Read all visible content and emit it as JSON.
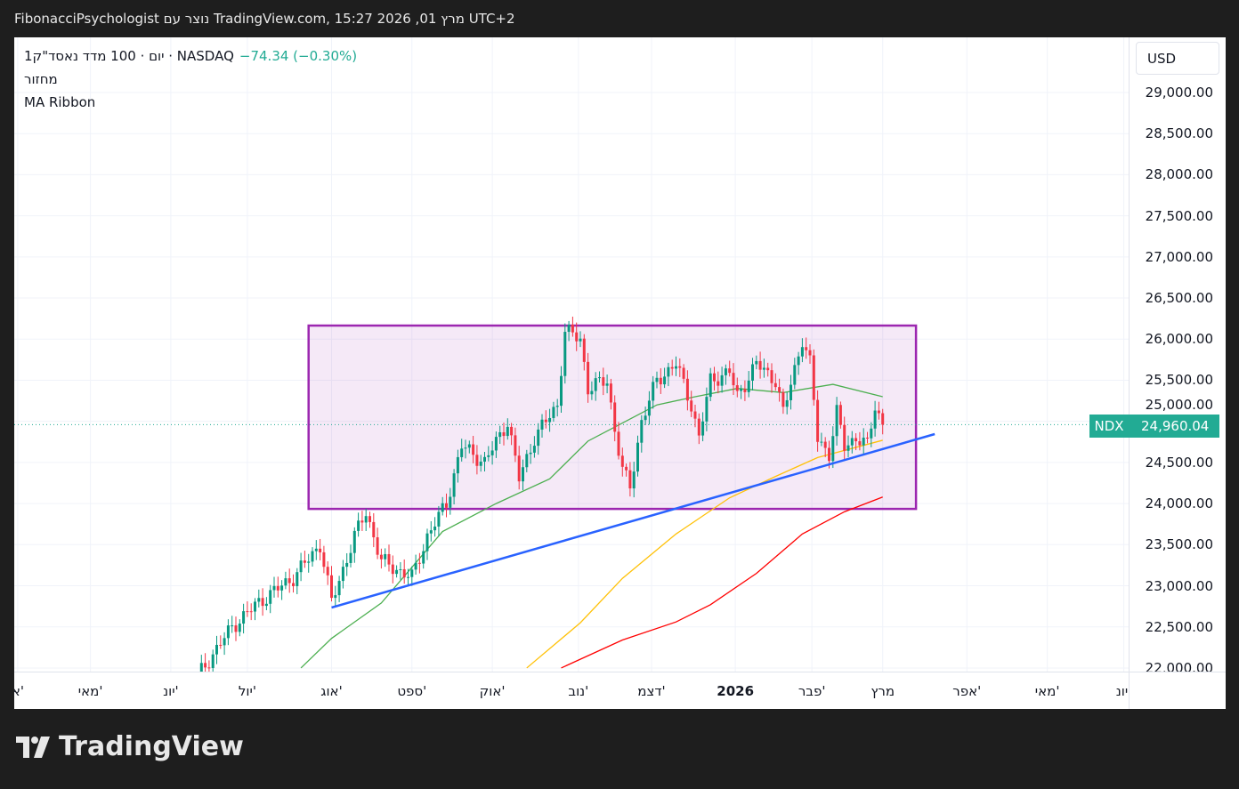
{
  "header": {
    "title": "FibonacciPsychologist נוצר עם TradingView.com, 15:27 2026 ,01 מרץ UTC+2"
  },
  "legend": {
    "symbol": "1יום · 100 מדד נאסד\"ק · NASDAQ",
    "change": "−74.34 (−0.30%)",
    "indicator1": "מחזור",
    "indicator2": "MA Ribbon"
  },
  "price_axis": {
    "currency": "USD",
    "labels": [
      "29,000.00",
      "28,500.00",
      "28,000.00",
      "27,500.00",
      "27,000.00",
      "26,500.00",
      "26,000.00",
      "25,500.00",
      "25,000.00",
      "24,500.00",
      "24,000.00",
      "23,500.00",
      "23,000.00",
      "22,500.00",
      "22,000.00"
    ],
    "ticker": "NDX",
    "last_price": "24,960.04"
  },
  "brand": {
    "logo_text": "TradingView"
  },
  "colors": {
    "up": "#089981",
    "down": "#f23645",
    "ma_fast": "#4caf50",
    "ma_mid": "#ffc107",
    "ma_slow": "#f00",
    "trendline": "#2962ff",
    "range_box": "#9c27b0",
    "accent": "#22ab94"
  },
  "chart_data": {
    "type": "candlestick",
    "symbol": "NDX",
    "timeframe": "1D",
    "ylim": [
      22000,
      29000
    ],
    "x_unit": "trading days since early June 2025",
    "time_labels": [
      {
        "label": "א'",
        "day": -47
      },
      {
        "label": "מאי'",
        "day": -28
      },
      {
        "label": "יונ'",
        "day": -7
      },
      {
        "label": "יול'",
        "day": 13
      },
      {
        "label": "אוג'",
        "day": 35
      },
      {
        "label": "ספט'",
        "day": 56
      },
      {
        "label": "אוק'",
        "day": 77
      },
      {
        "label": "נוב'",
        "day": 99.5
      },
      {
        "label": "דצמ'",
        "day": 118.6
      },
      {
        "label": "2026",
        "day": 140.5,
        "bold": true
      },
      {
        "label": "פבר'",
        "day": 160.5
      },
      {
        "label": "מרץ",
        "day": 179
      },
      {
        "label": "אפר'",
        "day": 201
      },
      {
        "label": "מאי'",
        "day": 222
      },
      {
        "label": "יונ'",
        "day": 242
      }
    ],
    "close_keypoints": [
      [
        0,
        21900
      ],
      [
        9,
        22500
      ],
      [
        16,
        22800
      ],
      [
        25,
        23100
      ],
      [
        32,
        23500
      ],
      [
        35,
        22800
      ],
      [
        41,
        23600
      ],
      [
        44,
        23900
      ],
      [
        48,
        23300
      ],
      [
        56,
        23100
      ],
      [
        60,
        23600
      ],
      [
        65,
        24000
      ],
      [
        69,
        24700
      ],
      [
        75,
        24500
      ],
      [
        81,
        25000
      ],
      [
        84,
        24300
      ],
      [
        88,
        24800
      ],
      [
        94,
        25200
      ],
      [
        96,
        26100
      ],
      [
        100,
        26000
      ],
      [
        102,
        25400
      ],
      [
        107,
        25500
      ],
      [
        109,
        24900
      ],
      [
        111,
        24400
      ],
      [
        113,
        24200
      ],
      [
        116,
        25000
      ],
      [
        120,
        25500
      ],
      [
        125,
        25700
      ],
      [
        129,
        25200
      ],
      [
        131,
        24800
      ],
      [
        134,
        25500
      ],
      [
        139,
        25600
      ],
      [
        141,
        25300
      ],
      [
        146,
        25700
      ],
      [
        151,
        25500
      ],
      [
        153,
        25100
      ],
      [
        158,
        26000
      ],
      [
        160,
        25700
      ],
      [
        162,
        24800
      ],
      [
        165,
        24600
      ],
      [
        167,
        25100
      ],
      [
        169,
        24700
      ],
      [
        172,
        24800
      ],
      [
        175,
        24700
      ],
      [
        177,
        25200
      ],
      [
        179,
        24960
      ]
    ],
    "ma_fast": [
      [
        27,
        22000
      ],
      [
        35,
        22360
      ],
      [
        48,
        22790
      ],
      [
        64,
        23660
      ],
      [
        78,
        24000
      ],
      [
        92,
        24300
      ],
      [
        102,
        24760
      ],
      [
        111,
        24980
      ],
      [
        120,
        25200
      ],
      [
        130,
        25300
      ],
      [
        141,
        25400
      ],
      [
        153,
        25350
      ],
      [
        166,
        25450
      ],
      [
        179,
        25300
      ]
    ],
    "ma_mid": [
      [
        86,
        22000
      ],
      [
        100,
        22550
      ],
      [
        111,
        23090
      ],
      [
        125,
        23630
      ],
      [
        139,
        24070
      ],
      [
        151,
        24330
      ],
      [
        162,
        24560
      ],
      [
        179,
        24770
      ]
    ],
    "ma_slow": [
      [
        95,
        22000
      ],
      [
        111,
        22340
      ],
      [
        125,
        22560
      ],
      [
        134,
        22770
      ],
      [
        146,
        23150
      ],
      [
        158,
        23630
      ],
      [
        169,
        23900
      ],
      [
        179,
        24080
      ]
    ],
    "trendline": [
      [
        35,
        22735
      ],
      [
        192.6,
        24845
      ]
    ],
    "range_box": {
      "day_start": 29,
      "day_end": 187.7,
      "price_high": 26165,
      "price_low": 23935
    },
    "last_price": 24960.04
  }
}
